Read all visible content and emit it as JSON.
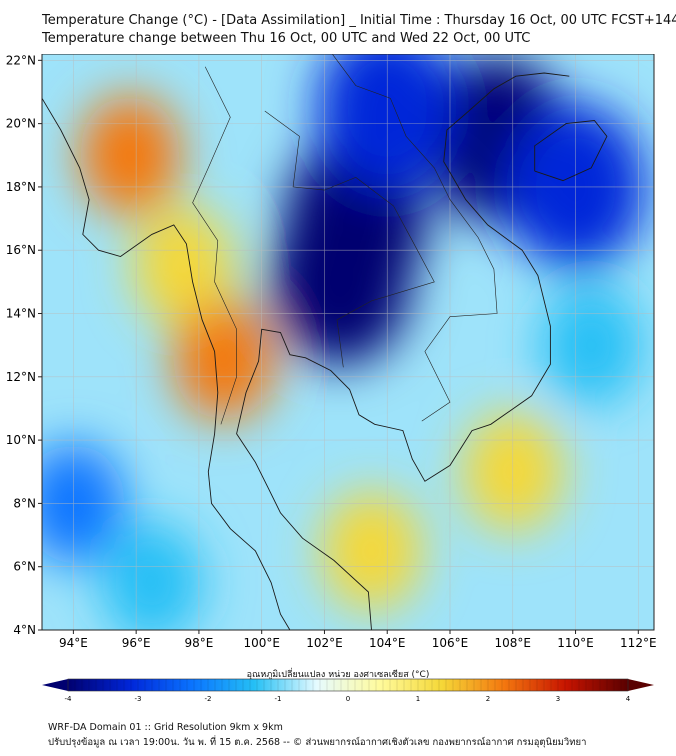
{
  "title": {
    "line1": "Temperature Change (°C) - [Data Assimilation] _ Initial Time : Thursday 16 Oct, 00 UTC FCST+144",
    "line2": "Temperature change between Thu 16 Oct, 00 UTC and Wed 22 Oct, 00 UTC"
  },
  "map": {
    "lon_range": [
      93,
      112.5
    ],
    "lat_range": [
      4,
      22.2
    ],
    "y_ticks": [
      "22°N",
      "20°N",
      "18°N",
      "16°N",
      "14°N",
      "12°N",
      "10°N",
      "8°N",
      "6°N",
      "4°N"
    ],
    "y_tick_values": [
      22,
      20,
      18,
      16,
      14,
      12,
      10,
      8,
      6,
      4
    ],
    "x_ticks": [
      "94°E",
      "96°E",
      "98°E",
      "100°E",
      "102°E",
      "104°E",
      "106°E",
      "108°E",
      "110°E",
      "112°E"
    ],
    "x_tick_values": [
      94,
      96,
      98,
      100,
      102,
      104,
      106,
      108,
      110,
      112
    ],
    "field_regions": [
      {
        "lon": 107.5,
        "lat": 19.5,
        "value": -3.5
      },
      {
        "lon": 103.0,
        "lat": 17.0,
        "value": -3.8
      },
      {
        "lon": 104.0,
        "lat": 20.5,
        "value": -3.0
      },
      {
        "lon": 110.0,
        "lat": 18.0,
        "value": -3.0
      },
      {
        "lon": 102.5,
        "lat": 15.0,
        "value": -3.2
      },
      {
        "lon": 95.8,
        "lat": 19.0,
        "value": 2.0
      },
      {
        "lon": 97.5,
        "lat": 15.5,
        "value": 1.3
      },
      {
        "lon": 98.8,
        "lat": 12.5,
        "value": 2.0
      },
      {
        "lon": 103.5,
        "lat": 6.5,
        "value": 1.2
      },
      {
        "lon": 108.0,
        "lat": 9.0,
        "value": 1.0
      },
      {
        "lon": 94.0,
        "lat": 8.0,
        "value": -1.8
      },
      {
        "lon": 96.5,
        "lat": 5.5,
        "value": -1.4
      },
      {
        "lon": 110.5,
        "lat": 13.0,
        "value": -1.2
      }
    ]
  },
  "colorbar": {
    "label": "อุณหภูมิเปลี่ยนแปลง หน่วย องศาเซลเซียส (°C)",
    "ticks": [
      "-4",
      "-3",
      "-2",
      "-1",
      "0",
      "1",
      "2",
      "3",
      "4"
    ],
    "range": [
      -4,
      4
    ],
    "colors": [
      "#000070",
      "#0026d9",
      "#0a74ff",
      "#25c0f5",
      "#e6fbff",
      "#fffb9e",
      "#f5d838",
      "#f4780f",
      "#c71400",
      "#5a0000"
    ]
  },
  "footer": {
    "line1": "WRF-DA Domain 01 :: Grid Resolution 9km x 9km",
    "line2": "ปรับปรุงข้อมูล ณ เวลา 19:00น. วัน พ. ที่ 15 ต.ค. 2568 -- © ส่วนพยากรณ์อากาศเชิงตัวเลข กองพยากรณ์อากาศ กรมอุตุนิยมวิทยา"
  }
}
